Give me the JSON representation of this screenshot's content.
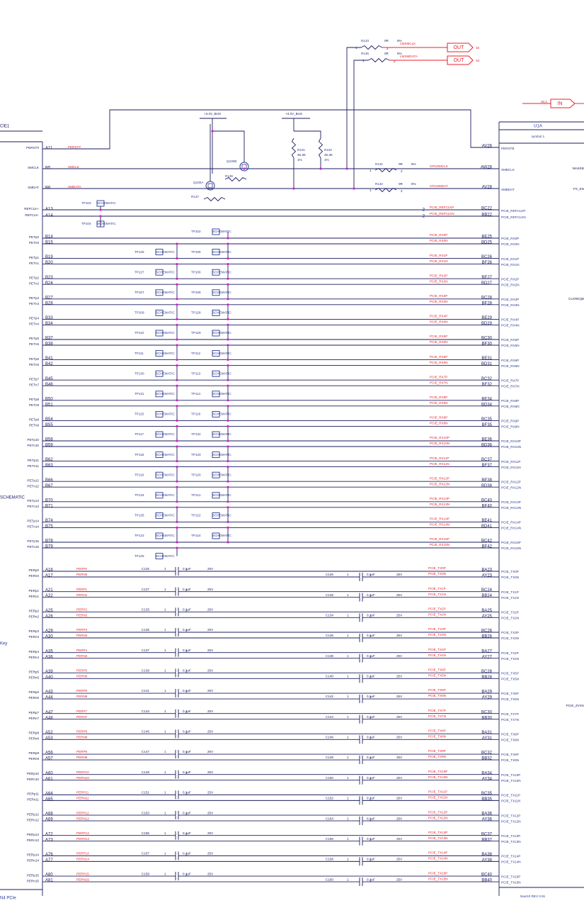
{
  "left_connector": {
    "title": "CIE1",
    "footer": "N4 PCIe",
    "side_labels": [
      "SCHEMATIC",
      "Key"
    ]
  },
  "gpu": {
    "title": "U1A",
    "subtitle": "symbol 1",
    "footer": "Navi10 REV 0.91",
    "side_labels": [
      "WAKEB",
      "PX_EN",
      "CLKREQB",
      "PCIE_ZVSS"
    ]
  },
  "control": [
    {
      "name": "PERST#",
      "pin": "A11",
      "net": "PERST#",
      "gpu_pin": "AV26",
      "gpu_label": "PERSTB"
    },
    {
      "name": "SMCLK",
      "pin": "B5",
      "net": "SMCLK",
      "gpu_net": "GPUSMCLK",
      "gpu_pin": "AW28",
      "gpu_label": "SMBCLK"
    },
    {
      "name": "SMDAT",
      "pin": "B6",
      "net": "SMDATA",
      "gpu_net": "GPUSMDAT",
      "gpu_pin": "AV28",
      "gpu_label": "SMBDAT"
    },
    {
      "name": "REFCLK+",
      "pin": "A13",
      "gpu_net": "PCIE_REFCLKP",
      "gpu_pin": "BC22",
      "gpu_label": "PCIE_REFCLKP"
    },
    {
      "name": "REFCLK-",
      "pin": "A14",
      "gpu_net": "PCIE_REFCLKN",
      "gpu_pin": "BB22",
      "gpu_label": "PCIE_REFCLKN"
    }
  ],
  "resistors": [
    {
      "ref": "R133",
      "value": "0R",
      "tol": "5%"
    },
    {
      "ref": "R135",
      "value": "0R",
      "tol": "5%"
    },
    {
      "ref": "R131",
      "value": "0R",
      "tol": "5%"
    },
    {
      "ref": "R132",
      "value": "0R",
      "tol": "5%"
    },
    {
      "ref": "R101",
      "value": "45.3K",
      "tol": "1%"
    },
    {
      "ref": "R102",
      "value": "45.3K",
      "tol": "1%"
    },
    {
      "ref": "R136"
    },
    {
      "ref": "R137"
    }
  ],
  "transistors": [
    "Q100A",
    "Q100B"
  ],
  "power": [
    "+3.3V_BUS",
    "+3.3V_BUS"
  ],
  "out_ports": [
    {
      "label": "OUT",
      "net": "LMSMCLK",
      "page": "33"
    },
    {
      "label": "OUT",
      "net": "LMSMDATA",
      "page": "33"
    }
  ],
  "in_port": {
    "label": "IN",
    "page": "30,2"
  },
  "pin_one": "1",
  "pin_two": "2",
  "top_tps": [
    "TP103",
    "TP104"
  ],
  "tp_text": "SCHEMATIC",
  "cap_value": "0.1uF",
  "cap_voltage": "25V",
  "tp_rows": [
    {
      "right": "TP102"
    },
    {
      "left": "TP126",
      "right": "TP105"
    },
    {
      "left": "TP127",
      "right": "TP106"
    },
    {
      "left": "TP107",
      "right": "TP108"
    },
    {
      "left": "TP109",
      "right": "TP128"
    },
    {
      "left": "TP110",
      "right": "TP129"
    },
    {
      "left": "TP111",
      "right": "TP112"
    },
    {
      "left": "TP130",
      "right": "TP113"
    },
    {
      "left": "TP131",
      "right": "TP114"
    },
    {
      "left": "TP115",
      "right": "TP116"
    },
    {
      "left": "TP117",
      "right": "TP132"
    },
    {
      "left": "TP118",
      "right": "TP133"
    },
    {
      "left": "TP119",
      "right": "TP120"
    },
    {
      "left": "TP134",
      "right": "TP121"
    },
    {
      "left": "TP135",
      "right": "TP122"
    },
    {
      "left": "TP123",
      "right": "TP124"
    },
    {
      "left": "TP125"
    }
  ],
  "rx_lanes": [
    [
      "PETp0",
      "PETn0",
      "B14",
      "B15",
      "PCIE_RX0P",
      "PCIE_RX0N",
      "BE25",
      "BD25"
    ],
    [
      "PETp1",
      "PETn1",
      "B19",
      "B20",
      "PCIE_RX1P",
      "PCIE_RX1N",
      "BC26",
      "BF26"
    ],
    [
      "PETp2",
      "PETn2",
      "B23",
      "B24",
      "PCIE_RX2P",
      "PCIE_RX2N",
      "BE27",
      "BD27"
    ],
    [
      "PETp3",
      "PETn3",
      "B27",
      "B28",
      "PCIE_RX3P",
      "PCIE_RX3N",
      "BC28",
      "BF28"
    ],
    [
      "PETp4",
      "PETn4",
      "B33",
      "B34",
      "PCIE_RX4P",
      "PCIE_RX4N",
      "BE29",
      "BD29"
    ],
    [
      "PETp5",
      "PETn5",
      "B37",
      "B38",
      "PCIE_RX5P",
      "PCIE_RX5N",
      "BC30",
      "BF30"
    ],
    [
      "PETp6",
      "PETn6",
      "B41",
      "B42",
      "PCIE_RX6P",
      "PCIE_RX6N",
      "BE31",
      "BD31"
    ],
    [
      "PETp7",
      "PETn7",
      "B45",
      "B46",
      "PCIE_RX7P",
      "PCIE_RX7N",
      "BC32",
      "BF32"
    ],
    [
      "PETp8",
      "PETn8",
      "B50",
      "B51",
      "PCIE_RX8P",
      "PCIE_RX8N",
      "BE34",
      "BD34"
    ],
    [
      "PETp9",
      "PETn9",
      "B54",
      "B55",
      "PCIE_RX9P",
      "PCIE_RX9N",
      "BC35",
      "BF35"
    ],
    [
      "PETp10",
      "PETn10",
      "B58",
      "B59",
      "PCIE_RX10P",
      "PCIE_RX10N",
      "BE36",
      "BD36"
    ],
    [
      "PETp11",
      "PETn11",
      "B62",
      "B63",
      "PCIE_RX11P",
      "PCIE_RX11N",
      "BC37",
      "BF37"
    ],
    [
      "PETp12",
      "PETn12",
      "B66",
      "B67",
      "PCIE_RX12P",
      "PCIE_RX12N",
      "BE38",
      "BD38"
    ],
    [
      "PETp13",
      "PETn13",
      "B70",
      "B71",
      "PCIE_RX13P",
      "PCIE_RX13N",
      "BC40",
      "BF40"
    ],
    [
      "PETp14",
      "PETn14",
      "B74",
      "B75",
      "PCIE_RX14P",
      "PCIE_RX14N",
      "BE41",
      "BD41"
    ],
    [
      "PETp15",
      "PETn15",
      "B78",
      "B79",
      "PCIE_RX15P",
      "PCIE_RX15N",
      "BC42",
      "BF42"
    ]
  ],
  "tx_lanes": [
    [
      "PERp0",
      "PERn0",
      "A16",
      "A17",
      "PERP0",
      "PERN0",
      "C125",
      "C126",
      "PCIE_TX0P",
      "PCIE_TX0N",
      "BA23",
      "AY23"
    ],
    [
      "PERp1",
      "PERn1",
      "A21",
      "A22",
      "PERP1",
      "PERN1",
      "C127",
      "C128",
      "PCIE_TX1P",
      "PCIE_TX1N",
      "BC24",
      "BB24"
    ],
    [
      "PERp2",
      "PERn2",
      "A25",
      "A26",
      "PERP2",
      "PERN2",
      "C133",
      "C134",
      "PCIE_TX2P",
      "PCIE_TX2N",
      "BA25",
      "AY25"
    ],
    [
      "PERp3",
      "PERn3",
      "A29",
      "A30",
      "PERP3",
      "PERN3",
      "C135",
      "C136",
      "PCIE_TX3P",
      "PCIE_TX3N",
      "BC26",
      "BB26"
    ],
    [
      "PERp4",
      "PERn4",
      "A35",
      "A36",
      "PERP4",
      "PERN4",
      "C137",
      "C138",
      "PCIE_TX4P",
      "PCIE_TX4N",
      "BA27",
      "AY27"
    ],
    [
      "PERp5",
      "PERn5",
      "A39",
      "A40",
      "PERP5",
      "PERN5",
      "C139",
      "C140",
      "PCIE_TX5P",
      "PCIE_TX5N",
      "BC28",
      "BB28"
    ],
    [
      "PERp6",
      "PERn6",
      "A43",
      "A44",
      "PERP6",
      "PERN6",
      "C141",
      "C142",
      "PCIE_TX6P",
      "PCIE_TX6N",
      "BA29",
      "AY29"
    ],
    [
      "PERp7",
      "PERn7",
      "A47",
      "A48",
      "PERP7",
      "PERN7",
      "C143",
      "C144",
      "PCIE_TX7P",
      "PCIE_TX7N",
      "BC30",
      "BB30"
    ],
    [
      "PERp8",
      "PERn8",
      "A52",
      "A53",
      "PERP8",
      "PERN8",
      "C145",
      "C146",
      "PCIE_TX8P",
      "PCIE_TX8N",
      "BA31",
      "AY31"
    ],
    [
      "PERp9",
      "PERn9",
      "A56",
      "A57",
      "PERP9",
      "PERN9",
      "C147",
      "C148",
      "PCIE_TX9P",
      "PCIE_TX9N",
      "BC32",
      "BB32"
    ],
    [
      "PERp10",
      "PERn10",
      "A60",
      "A61",
      "PERP10",
      "PERN10",
      "C149",
      "C150",
      "PCIE_TX10P",
      "PCIE_TX10N",
      "BA34",
      "AY34"
    ],
    [
      "PERp11",
      "PERn11",
      "A64",
      "A65",
      "PERP11",
      "PERN11",
      "C151",
      "C152",
      "PCIE_TX11P",
      "PCIE_TX11N",
      "BC35",
      "BB35"
    ],
    [
      "PERp12",
      "PERn12",
      "A68",
      "A69",
      "PERP12",
      "PERN12",
      "C153",
      "C154",
      "PCIE_TX12P",
      "PCIE_TX12N",
      "BA36",
      "AY36"
    ],
    [
      "PERp13",
      "PERn13",
      "A72",
      "A73",
      "PERP13",
      "PERN13",
      "C155",
      "C156",
      "PCIE_TX13P",
      "PCIE_TX13N",
      "BC37",
      "BB37"
    ],
    [
      "PERp14",
      "PERn14",
      "A76",
      "A77",
      "PERP14",
      "PERN14",
      "C157",
      "C158",
      "PCIE_TX14P",
      "PCIE_TX14N",
      "BA38",
      "AY38"
    ],
    [
      "PERp15",
      "PERn15",
      "A80",
      "A81",
      "PERP15",
      "PERN15",
      "C159",
      "C160",
      "PCIE_TX15P",
      "PCIE_TX15N",
      "BC40",
      "BB40"
    ]
  ]
}
